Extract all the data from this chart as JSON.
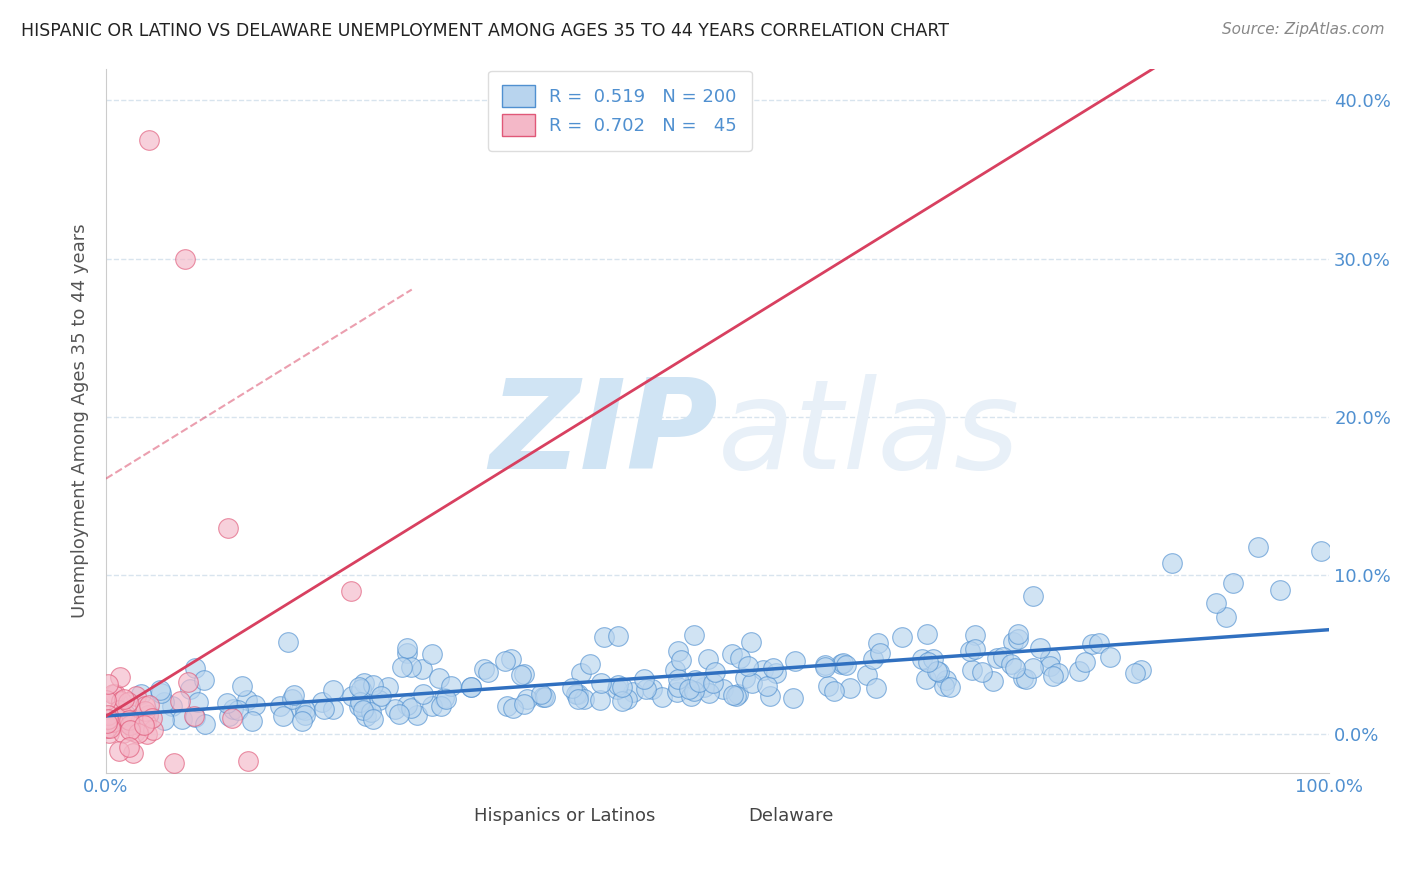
{
  "title": "HISPANIC OR LATINO VS DELAWARE UNEMPLOYMENT AMONG AGES 35 TO 44 YEARS CORRELATION CHART",
  "source": "Source: ZipAtlas.com",
  "ylabel": "Unemployment Among Ages 35 to 44 years",
  "xlim": [
    0.0,
    1.0
  ],
  "ylim": [
    -0.025,
    0.42
  ],
  "yticks": [
    0.0,
    0.1,
    0.2,
    0.3,
    0.4
  ],
  "ytick_labels": [
    "0.0%",
    "10.0%",
    "20.0%",
    "30.0%",
    "40.0%"
  ],
  "xticks": [
    0.0,
    0.1,
    0.2,
    0.3,
    0.4,
    0.5,
    0.6,
    0.7,
    0.8,
    0.9,
    1.0
  ],
  "xtick_labels": [
    "0.0%",
    "",
    "",
    "",
    "",
    "",
    "",
    "",
    "",
    "",
    "100.0%"
  ],
  "blue_R": 0.519,
  "blue_N": 200,
  "pink_R": 0.702,
  "pink_N": 45,
  "blue_color": "#b8d4ee",
  "pink_color": "#f4b8c8",
  "blue_edge_color": "#5090d0",
  "pink_edge_color": "#e05878",
  "blue_line_color": "#3070c0",
  "pink_line_color": "#d84060",
  "watermark_zip": "ZIP",
  "watermark_atlas": "atlas",
  "watermark_color": "#d0e4f4",
  "legend_blue_label": "Hispanics or Latinos",
  "legend_pink_label": "Delaware",
  "background_color": "#ffffff",
  "grid_color": "#d8e4ee",
  "title_color": "#222222",
  "source_color": "#888888",
  "tick_color": "#5090d0"
}
